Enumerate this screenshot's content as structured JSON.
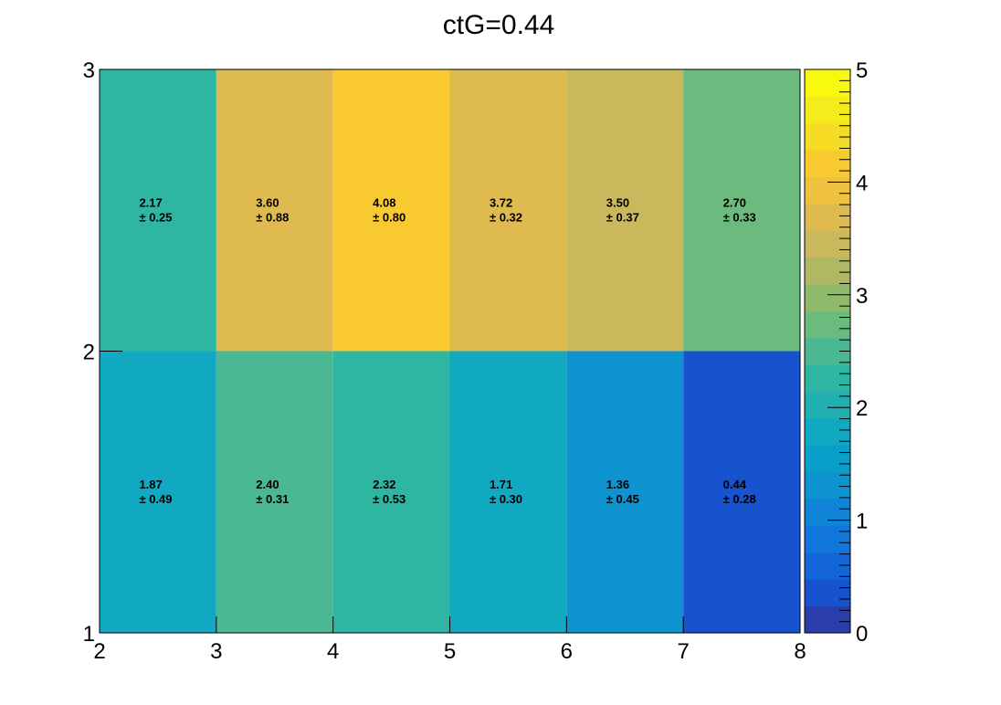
{
  "chart_data": {
    "type": "heatmap",
    "title": "ctG=0.44",
    "xlabel": "",
    "ylabel": "",
    "x_edges": [
      2,
      3,
      4,
      5,
      6,
      7,
      8
    ],
    "y_edges": [
      1,
      2,
      3
    ],
    "xlim": [
      2,
      8
    ],
    "ylim": [
      1,
      3
    ],
    "zlim": [
      0,
      5
    ],
    "x_tick_labels": [
      "2",
      "3",
      "4",
      "5",
      "6",
      "7",
      "8"
    ],
    "y_tick_labels": [
      "1",
      "2",
      "3"
    ],
    "z_tick_labels": [
      "0",
      "1",
      "2",
      "3",
      "4",
      "5"
    ],
    "rows": [
      {
        "y_bin": [
          1,
          2
        ],
        "values": [
          1.87,
          2.4,
          2.32,
          1.71,
          1.36,
          0.44
        ],
        "errors": [
          0.49,
          0.31,
          0.53,
          0.3,
          0.45,
          0.28
        ],
        "labels": [
          "1.87",
          "2.40",
          "2.32",
          "1.71",
          "1.36",
          "0.44"
        ],
        "error_labels": [
          "± 0.49",
          "± 0.31",
          "± 0.53",
          "± 0.30",
          "± 0.45",
          "± 0.28"
        ]
      },
      {
        "y_bin": [
          2,
          3
        ],
        "values": [
          2.17,
          3.6,
          4.08,
          3.72,
          3.5,
          2.7
        ],
        "errors": [
          0.25,
          0.88,
          0.8,
          0.32,
          0.37,
          0.33
        ],
        "labels": [
          "2.17",
          "3.60",
          "4.08",
          "3.72",
          "3.50",
          "2.70"
        ],
        "error_labels": [
          "± 0.25",
          "± 0.88",
          "± 0.80",
          "± 0.32",
          "± 0.37",
          "± 0.33"
        ]
      }
    ],
    "palette": [
      "#2a3eab",
      "#1752cf",
      "#1266d9",
      "#1176dc",
      "#1084d6",
      "#0e93d1",
      "#08a0cb",
      "#11a8c1",
      "#20b0b1",
      "#2fb6a3",
      "#4ab993",
      "#6bbb7e",
      "#8fba6c",
      "#b0b864",
      "#cab95c",
      "#deba4f",
      "#eec23e",
      "#f8ca30",
      "#f7dc25",
      "#f6ec1c",
      "#f9f90e"
    ],
    "grid": false,
    "legend": "color scale on right"
  }
}
